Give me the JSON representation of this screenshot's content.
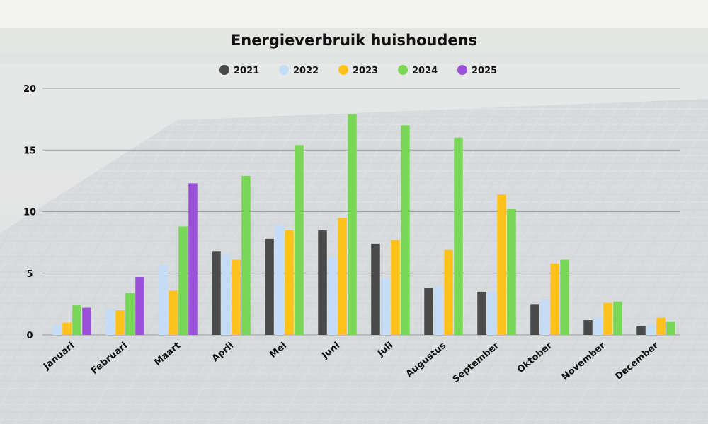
{
  "chart_data": {
    "type": "bar",
    "title": "Energieverbruik huishoudens",
    "xlabel": "",
    "ylabel": "",
    "ylim": [
      0,
      20
    ],
    "yticks": [
      0,
      5,
      10,
      15,
      20
    ],
    "grid": true,
    "legend_position": "top-center",
    "categories": [
      "Januari",
      "Februari",
      "Maart",
      "April",
      "Mei",
      "Juni",
      "Juli",
      "Augustus",
      "September",
      "Oktober",
      "November",
      "December"
    ],
    "series": [
      {
        "name": "2021",
        "color": "#4a4a4a",
        "values": [
          null,
          null,
          null,
          6.8,
          7.8,
          8.5,
          7.4,
          3.8,
          3.5,
          2.5,
          1.2,
          0.7
        ]
      },
      {
        "name": "2022",
        "color": "#c4dcf5",
        "values": [
          0.8,
          2.1,
          5.7,
          6.5,
          8.9,
          6.3,
          4.6,
          3.9,
          3.5,
          2.9,
          1.4,
          0.8
        ]
      },
      {
        "name": "2023",
        "color": "#ffc21a",
        "values": [
          1.0,
          2.0,
          3.6,
          6.1,
          8.5,
          9.5,
          7.7,
          6.9,
          11.4,
          5.8,
          2.6,
          1.4
        ]
      },
      {
        "name": "2024",
        "color": "#7ad657",
        "values": [
          2.4,
          3.4,
          8.8,
          12.9,
          15.4,
          17.9,
          17.0,
          16.0,
          10.2,
          6.1,
          2.7,
          1.1
        ]
      },
      {
        "name": "2025",
        "color": "#9b51d9",
        "values": [
          2.2,
          4.7,
          12.3,
          null,
          null,
          null,
          null,
          null,
          null,
          null,
          null,
          null
        ]
      }
    ]
  }
}
